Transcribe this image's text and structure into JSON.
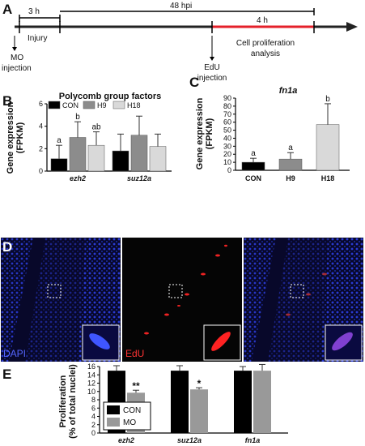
{
  "panel_a": {
    "letter": "A",
    "label_3h": "3 h",
    "label_48hpi": "48 hpi",
    "label_4h": "4 h",
    "injury": "Injury",
    "mo_injection": [
      "MO",
      "injection"
    ],
    "edu_injection": [
      "EdU",
      "injection"
    ],
    "cell_prolif": [
      "Cell proliferation",
      "analysis"
    ]
  },
  "panel_d": {
    "letter": "D",
    "labels": [
      "DAPI",
      "EdU",
      ""
    ]
  },
  "chart_data": [
    {
      "type": "bar",
      "panel": "B",
      "title": "Polycomb group factors",
      "ylabel": "Gene expression (FPKM)",
      "ylim": [
        0,
        6
      ],
      "yticks": [
        0,
        2,
        4,
        6
      ],
      "categories": [
        "ezh2",
        "suz12a"
      ],
      "series": [
        {
          "name": "CON",
          "color": "#000000",
          "values": [
            1.1,
            1.8
          ],
          "errors": [
            1.2,
            1.5
          ],
          "letters": [
            "a",
            ""
          ]
        },
        {
          "name": "H9",
          "color": "#8c8c8c",
          "values": [
            3.0,
            3.2
          ],
          "errors": [
            1.4,
            1.7
          ],
          "letters": [
            "b",
            ""
          ]
        },
        {
          "name": "H18",
          "color": "#d9d9d9",
          "values": [
            2.3,
            2.2
          ],
          "errors": [
            1.2,
            1.1
          ],
          "letters": [
            "ab",
            ""
          ]
        }
      ],
      "legend": "top"
    },
    {
      "type": "bar",
      "panel": "C",
      "title": "fn1a",
      "ylabel": "Gene expression (FPKM)",
      "ylim": [
        0,
        90
      ],
      "yticks": [
        0,
        10,
        20,
        30,
        40,
        50,
        60,
        70,
        80,
        90
      ],
      "categories": [
        "CON",
        "H9",
        "H18"
      ],
      "series": [
        {
          "name": "",
          "colors": [
            "#000000",
            "#8c8c8c",
            "#d9d9d9"
          ],
          "values": [
            10,
            14,
            57
          ],
          "errors": [
            5,
            8,
            26
          ],
          "letters": [
            "a",
            "a",
            "b"
          ]
        }
      ]
    },
    {
      "type": "bar",
      "panel": "E",
      "ylabel": "Proliferation (% of total nuclei)",
      "ylim": [
        0,
        16
      ],
      "yticks": [
        0,
        2,
        4,
        6,
        8,
        10,
        12,
        14,
        16
      ],
      "categories": [
        "ezh2",
        "suz12a",
        "fn1a"
      ],
      "series": [
        {
          "name": "CON",
          "color": "#000000",
          "values": [
            15,
            15,
            15
          ],
          "errors": [
            1.2,
            1.2,
            1.0
          ],
          "marks": [
            "",
            "",
            ""
          ]
        },
        {
          "name": "MO",
          "color": "#999999",
          "values": [
            9.7,
            10.5,
            15
          ],
          "errors": [
            0.6,
            0.4,
            1.5
          ],
          "marks": [
            "**",
            "*",
            ""
          ]
        }
      ],
      "legend": "bottom-left"
    }
  ]
}
